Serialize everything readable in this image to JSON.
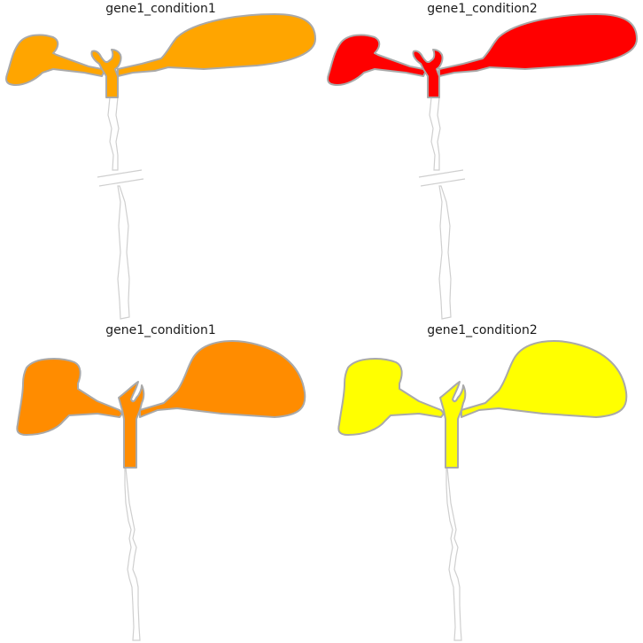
{
  "panels": [
    {
      "title": "gene1_condition1",
      "fill": "#FFA500",
      "variant": "cut"
    },
    {
      "title": "gene1_condition2",
      "fill": "#FF0000",
      "variant": "cut"
    },
    {
      "title": "gene1_condition1",
      "fill": "#FF8C00",
      "variant": "full"
    },
    {
      "title": "gene1_condition2",
      "fill": "#FFFF00",
      "variant": "full"
    }
  ]
}
